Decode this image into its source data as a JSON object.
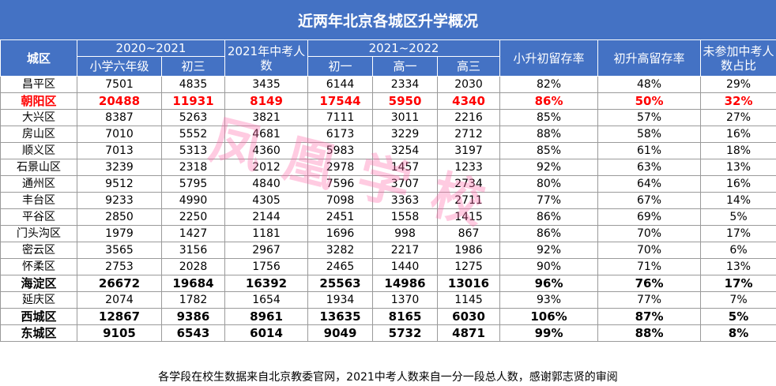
{
  "title": "近两年北京各城区升学概况",
  "header": {
    "district": "城区",
    "group_2020_2021": "2020~2021",
    "primary_6": "小学六年级",
    "junior_3": "初三",
    "zhongkao_2021": "2021年中考人数",
    "group_2021_2022": "2021~2022",
    "junior_1": "初一",
    "senior_1": "高一",
    "senior_3": "高三",
    "primary_to_junior": "小升初留存率",
    "junior_to_senior": "初升高留存率",
    "not_in_zhongkao": "未参加中考人数占比"
  },
  "rows": [
    {
      "district": "昌平区",
      "primary_6": "7501",
      "junior_3": "4835",
      "zhongkao": "3435",
      "junior_1": "6144",
      "senior_1": "2334",
      "senior_3": "2030",
      "p2j": "82%",
      "j2s": "48%",
      "absent": "29%",
      "style": "normal"
    },
    {
      "district": "朝阳区",
      "primary_6": "20488",
      "junior_3": "11931",
      "zhongkao": "8149",
      "junior_1": "17544",
      "senior_1": "5950",
      "senior_3": "4340",
      "p2j": "86%",
      "j2s": "50%",
      "absent": "32%",
      "style": "red"
    },
    {
      "district": "大兴区",
      "primary_6": "8387",
      "junior_3": "5263",
      "zhongkao": "3821",
      "junior_1": "7111",
      "senior_1": "3011",
      "senior_3": "2216",
      "p2j": "85%",
      "j2s": "57%",
      "absent": "27%",
      "style": "normal"
    },
    {
      "district": "房山区",
      "primary_6": "7010",
      "junior_3": "5552",
      "zhongkao": "4681",
      "junior_1": "6173",
      "senior_1": "3229",
      "senior_3": "2712",
      "p2j": "88%",
      "j2s": "58%",
      "absent": "16%",
      "style": "normal"
    },
    {
      "district": "顺义区",
      "primary_6": "7013",
      "junior_3": "5313",
      "zhongkao": "4360",
      "junior_1": "5983",
      "senior_1": "3254",
      "senior_3": "3197",
      "p2j": "85%",
      "j2s": "61%",
      "absent": "18%",
      "style": "normal"
    },
    {
      "district": "石景山区",
      "primary_6": "3239",
      "junior_3": "2318",
      "zhongkao": "2012",
      "junior_1": "2978",
      "senior_1": "1457",
      "senior_3": "1233",
      "p2j": "92%",
      "j2s": "63%",
      "absent": "13%",
      "style": "normal"
    },
    {
      "district": "通州区",
      "primary_6": "9512",
      "junior_3": "5795",
      "zhongkao": "4840",
      "junior_1": "7596",
      "senior_1": "3707",
      "senior_3": "2734",
      "p2j": "80%",
      "j2s": "64%",
      "absent": "16%",
      "style": "normal"
    },
    {
      "district": "丰台区",
      "primary_6": "9233",
      "junior_3": "4990",
      "zhongkao": "4305",
      "junior_1": "7098",
      "senior_1": "3363",
      "senior_3": "2711",
      "p2j": "77%",
      "j2s": "67%",
      "absent": "14%",
      "style": "normal"
    },
    {
      "district": "平谷区",
      "primary_6": "2850",
      "junior_3": "2250",
      "zhongkao": "2144",
      "junior_1": "2451",
      "senior_1": "1558",
      "senior_3": "1415",
      "p2j": "86%",
      "j2s": "69%",
      "absent": "5%",
      "style": "normal"
    },
    {
      "district": "门头沟区",
      "primary_6": "1979",
      "junior_3": "1427",
      "zhongkao": "1181",
      "junior_1": "1696",
      "senior_1": "998",
      "senior_3": "867",
      "p2j": "86%",
      "j2s": "70%",
      "absent": "17%",
      "style": "normal"
    },
    {
      "district": "密云区",
      "primary_6": "3565",
      "junior_3": "3156",
      "zhongkao": "2967",
      "junior_1": "3282",
      "senior_1": "2217",
      "senior_3": "1986",
      "p2j": "92%",
      "j2s": "70%",
      "absent": "6%",
      "style": "normal"
    },
    {
      "district": "怀柔区",
      "primary_6": "2753",
      "junior_3": "2028",
      "zhongkao": "1756",
      "junior_1": "2465",
      "senior_1": "1440",
      "senior_3": "1275",
      "p2j": "90%",
      "j2s": "71%",
      "absent": "13%",
      "style": "normal"
    },
    {
      "district": "海淀区",
      "primary_6": "26672",
      "junior_3": "19684",
      "zhongkao": "16392",
      "junior_1": "25563",
      "senior_1": "14986",
      "senior_3": "13016",
      "p2j": "96%",
      "j2s": "76%",
      "absent": "17%",
      "style": "bold"
    },
    {
      "district": "延庆区",
      "primary_6": "2074",
      "junior_3": "1782",
      "zhongkao": "1654",
      "junior_1": "1934",
      "senior_1": "1370",
      "senior_3": "1145",
      "p2j": "93%",
      "j2s": "77%",
      "absent": "7%",
      "style": "normal"
    },
    {
      "district": "西城区",
      "primary_6": "12867",
      "junior_3": "9386",
      "zhongkao": "8961",
      "junior_1": "13635",
      "senior_1": "8165",
      "senior_3": "6030",
      "p2j": "106%",
      "j2s": "87%",
      "absent": "5%",
      "style": "bold"
    },
    {
      "district": "东城区",
      "primary_6": "9105",
      "junior_3": "6543",
      "zhongkao": "6014",
      "junior_1": "9049",
      "senior_1": "5732",
      "senior_3": "4871",
      "p2j": "99%",
      "j2s": "88%",
      "absent": "8%",
      "style": "bold"
    }
  ],
  "footnote": "各学段在校生数据来自北京教委官网，2021中考人数来自一分一段总人数，感谢郭志贤的审阅",
  "watermark": "凤凰学校",
  "colors": {
    "header_bg": "#4472C4",
    "highlight_text": "#FF0000",
    "watermark": "#FF69AA"
  }
}
